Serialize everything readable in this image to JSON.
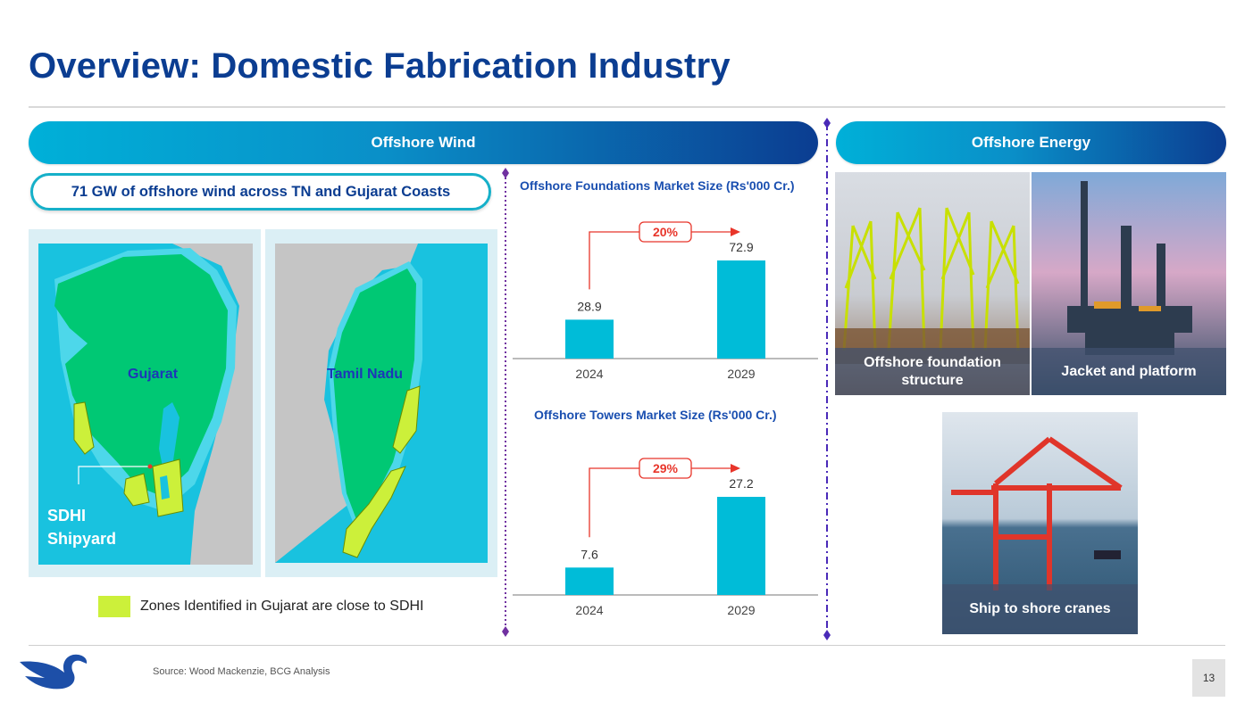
{
  "slide": {
    "title": "Overview: Domestic Fabrication Industry",
    "source": "Source: Wood Mackenzie, BCG Analysis",
    "page_number": "13"
  },
  "wind": {
    "banner": "Offshore Wind",
    "callout": "71 GW of offshore wind across TN and Gujarat Coasts",
    "maps": {
      "gujarat_label": "Gujarat",
      "tn_label": "Tamil Nadu",
      "sdhi_line1": "SDHI",
      "sdhi_line2": "Shipyard"
    },
    "legend_text": "Zones Identified in Gujarat are close to SDHI",
    "colors": {
      "zone": "#ccf03a",
      "land": "#00c874",
      "sea": "#19c2df",
      "bar": "#00bcd8",
      "growth": "#e8352a"
    }
  },
  "energy": {
    "banner": "Offshore Energy",
    "photos": [
      {
        "icon": "foundation-structure-photo",
        "caption": "Offshore foundation structure"
      },
      {
        "icon": "oil-rig-photo",
        "caption": "Jacket and platform"
      },
      {
        "icon": "port-crane-photo",
        "caption": "Ship to shore cranes"
      }
    ]
  },
  "chart_data": [
    {
      "type": "bar",
      "title": "Offshore Foundations Market  Size (Rs'000 Cr.)",
      "categories": [
        "2024",
        "2029"
      ],
      "values": [
        28.9,
        72.9
      ],
      "labels": [
        "28.9",
        "72.9"
      ],
      "growth_label": "20%",
      "ylim": [
        0,
        72.9
      ]
    },
    {
      "type": "bar",
      "title": "Offshore Towers Market  Size (Rs'000 Cr.)",
      "categories": [
        "2024",
        "2029"
      ],
      "values": [
        7.6,
        27.2
      ],
      "labels": [
        "7.6",
        "27.2"
      ],
      "growth_label": "29%",
      "ylim": [
        0,
        27.2
      ]
    }
  ]
}
